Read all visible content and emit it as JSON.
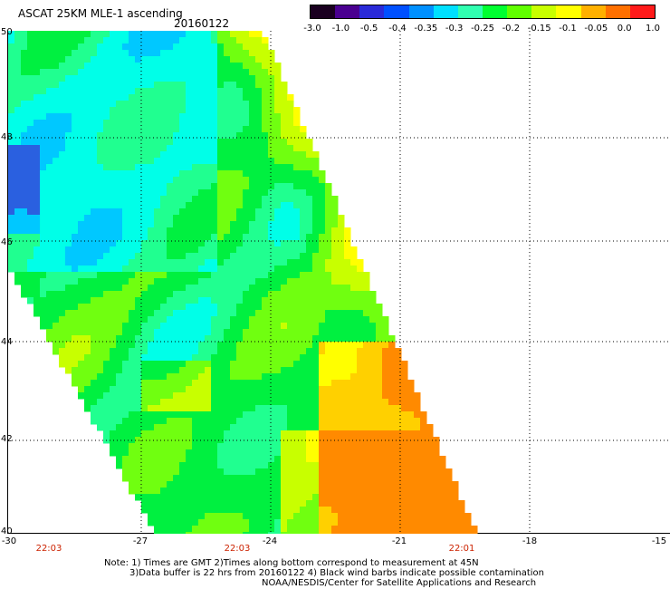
{
  "header": {
    "title": "ASCAT 25KM MLE-1 ascending",
    "date": "20160122"
  },
  "colorbar": {
    "labels": [
      "-3.0",
      "-1.0",
      "-0.5",
      "-0.4",
      "-0.35",
      "-0.3",
      "-0.25",
      "-0.2",
      "-0.15",
      "-0.1",
      "-0.05",
      "0.0",
      "1.0"
    ],
    "colors": [
      "#1a0020",
      "#4a0090",
      "#2a2ad8",
      "#0050ff",
      "#0090ff",
      "#00e0ff",
      "#30ffb0",
      "#00ff30",
      "#60ff00",
      "#c8ff00",
      "#ffff00",
      "#ffb000",
      "#ff7000",
      "#ff1a1a"
    ]
  },
  "map": {
    "lat_labels": [
      "50",
      "48",
      "46",
      "44",
      "42",
      "40"
    ],
    "lon_labels": [
      "-30",
      "-27",
      "-24",
      "-21",
      "-18",
      "-15"
    ],
    "time_labels": [
      "22:03",
      "22:03",
      "22:01"
    ]
  },
  "notes": {
    "line1": "Note: 1) Times are GMT 2)Times along bottom correspond to measurement at 45N",
    "line2": "3)Data buffer is 22 hrs from 20160122 4) Black wind barbs indicate possible contamination",
    "line3": "NOAA/NESDIS/Center for Satellite Applications and Research"
  }
}
